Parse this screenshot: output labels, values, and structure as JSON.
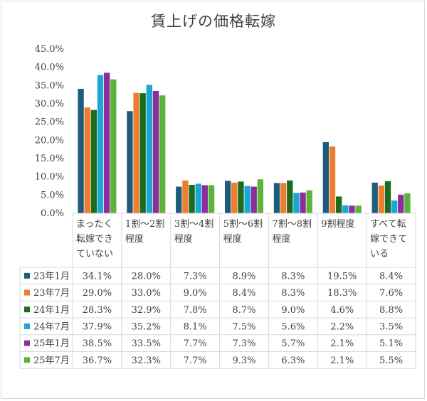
{
  "chart_data": {
    "type": "bar",
    "title": "賃上げの価格転嫁",
    "categories": [
      [
        "まったく",
        "転嫁でき",
        "ていない"
      ],
      [
        "1割〜2割",
        "程度"
      ],
      [
        "3割〜4割",
        "程度"
      ],
      [
        "5割〜6割",
        "程度"
      ],
      [
        "7割〜8割",
        "程度"
      ],
      [
        "9割程度"
      ],
      [
        "すべて転",
        "嫁できて",
        "いる"
      ]
    ],
    "series": [
      {
        "name": "23年1月",
        "color": "#1f5c7a",
        "values": [
          34.1,
          28.0,
          7.3,
          8.9,
          8.3,
          19.5,
          8.4
        ],
        "labels": [
          "34.1%",
          "28.0%",
          "7.3%",
          "8.9%",
          "8.3%",
          "19.5%",
          "8.4%"
        ]
      },
      {
        "name": "23年7月",
        "color": "#ed7d31",
        "values": [
          29.0,
          33.0,
          9.0,
          8.4,
          8.3,
          18.3,
          7.6
        ],
        "labels": [
          "29.0%",
          "33.0%",
          "9.0%",
          "8.4%",
          "8.3%",
          "18.3%",
          "7.6%"
        ]
      },
      {
        "name": "24年1月",
        "color": "#1e6b1e",
        "values": [
          28.3,
          32.9,
          7.8,
          8.7,
          9.0,
          4.6,
          8.8
        ],
        "labels": [
          "28.3%",
          "32.9%",
          "7.8%",
          "8.7%",
          "9.0%",
          "4.6%",
          "8.8%"
        ]
      },
      {
        "name": "24年7月",
        "color": "#1ba6d8",
        "values": [
          37.9,
          35.2,
          8.1,
          7.5,
          5.6,
          2.2,
          3.5
        ],
        "labels": [
          "37.9%",
          "35.2%",
          "8.1%",
          "7.5%",
          "5.6%",
          "2.2%",
          "3.5%"
        ]
      },
      {
        "name": "25年1月",
        "color": "#8b2d9c",
        "values": [
          38.5,
          33.5,
          7.7,
          7.3,
          5.7,
          2.1,
          5.1
        ],
        "labels": [
          "38.5%",
          "33.5%",
          "7.7%",
          "7.3%",
          "5.7%",
          "2.1%",
          "5.1%"
        ]
      },
      {
        "name": "25年7月",
        "color": "#5bb33a",
        "values": [
          36.7,
          32.3,
          7.7,
          9.3,
          6.3,
          2.1,
          5.5
        ],
        "labels": [
          "36.7%",
          "32.3%",
          "7.7%",
          "9.3%",
          "6.3%",
          "2.1%",
          "5.5%"
        ]
      }
    ],
    "ylim": [
      0,
      45
    ],
    "yticks": [
      "0.0%",
      "5.0%",
      "10.0%",
      "15.0%",
      "20.0%",
      "25.0%",
      "30.0%",
      "35.0%",
      "40.0%",
      "45.0%"
    ],
    "grid": false,
    "legend": "data-table"
  }
}
